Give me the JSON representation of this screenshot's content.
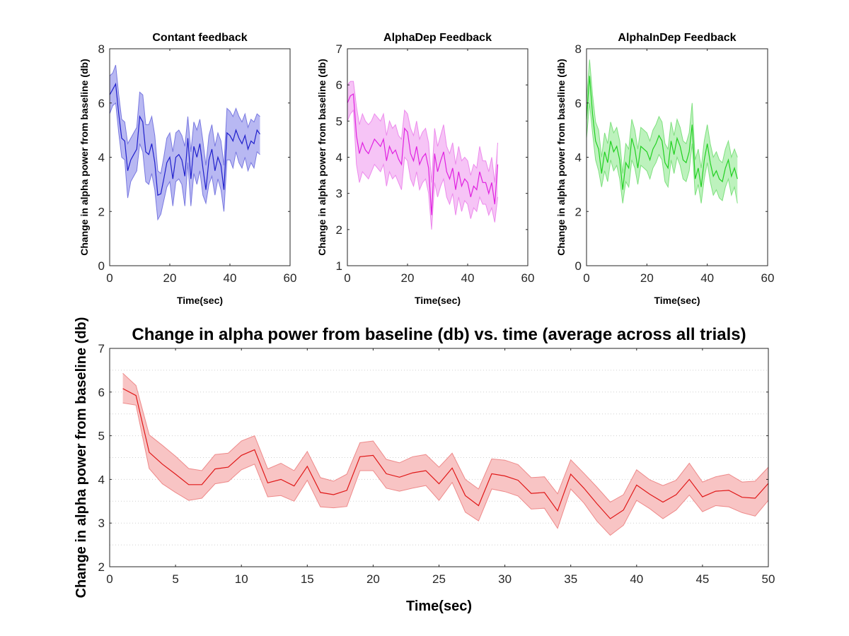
{
  "chart_data": [
    {
      "type": "line",
      "title": "Contant feedback",
      "xlabel": "Time(sec)",
      "ylabel": "Change in alpha power from baseline (db)",
      "xlim": [
        0,
        60
      ],
      "ylim": [
        0,
        8
      ],
      "xticks": [
        "0",
        "20",
        "40",
        "60"
      ],
      "yticks": [
        "0",
        "2",
        "4",
        "6",
        "8"
      ],
      "colors": {
        "line": "#1f1fcc",
        "band": "#b8b8f2",
        "band_edge": "#7878e0"
      },
      "series": [
        {
          "x": [
            0,
            1,
            2,
            3,
            4,
            5,
            6,
            7,
            8,
            9,
            10,
            11,
            12,
            13,
            14,
            15,
            16,
            17,
            18,
            19,
            20,
            21,
            22,
            23,
            24,
            25,
            26,
            27,
            28,
            29,
            30,
            31,
            32,
            33,
            34,
            35,
            36,
            37,
            38,
            39,
            40,
            41,
            42,
            43,
            44,
            45,
            46,
            47,
            48,
            49,
            50
          ],
          "values": [
            6.3,
            6.5,
            6.7,
            5.6,
            4.7,
            4.6,
            3.5,
            3.9,
            4.1,
            4.3,
            5.5,
            5.3,
            4.2,
            4.1,
            4.5,
            3.8,
            2.6,
            2.65,
            3.2,
            3.8,
            4.0,
            3.2,
            4.0,
            4.1,
            3.9,
            3.3,
            4.7,
            3.2,
            4.4,
            4.0,
            4.5,
            3.6,
            2.8,
            3.9,
            4.3,
            3.5,
            4.0,
            3.7,
            2.8,
            4.9,
            4.8,
            4.6,
            5.0,
            4.7,
            4.5,
            4.8,
            4.3,
            4.6,
            4.5,
            5.0,
            4.85
          ],
          "lower": [
            5.6,
            5.9,
            6.0,
            4.9,
            4.0,
            3.9,
            2.5,
            3.1,
            3.3,
            3.5,
            4.5,
            4.2,
            3.1,
            3.0,
            3.4,
            2.8,
            1.7,
            1.9,
            2.4,
            2.9,
            3.1,
            2.2,
            3.1,
            3.2,
            3.0,
            2.2,
            3.8,
            2.2,
            3.4,
            3.0,
            3.5,
            2.6,
            2.3,
            3.0,
            3.3,
            2.6,
            3.2,
            2.8,
            2.0,
            3.9,
            3.9,
            3.6,
            4.2,
            3.8,
            3.6,
            4.0,
            3.5,
            3.8,
            3.6,
            4.2,
            4.1
          ],
          "upper": [
            7.0,
            7.1,
            7.4,
            6.3,
            5.4,
            5.3,
            4.5,
            4.7,
            4.9,
            5.1,
            6.4,
            6.3,
            5.2,
            5.2,
            5.5,
            4.8,
            3.5,
            3.4,
            4.0,
            4.7,
            4.9,
            4.2,
            4.9,
            5.0,
            4.8,
            4.4,
            5.5,
            4.2,
            5.3,
            5.0,
            5.4,
            4.6,
            3.7,
            4.8,
            5.2,
            4.4,
            4.9,
            4.6,
            3.7,
            5.8,
            5.7,
            5.5,
            5.8,
            5.5,
            5.3,
            5.6,
            5.1,
            5.4,
            5.3,
            5.6,
            5.5
          ]
        }
      ]
    },
    {
      "type": "line",
      "title": "AlphaDep Feedback",
      "xlabel": "Time(sec)",
      "ylabel": "Change in alpha power from baseline (db)",
      "xlim": [
        0,
        60
      ],
      "ylim": [
        1,
        7
      ],
      "xticks": [
        "0",
        "20",
        "40",
        "60"
      ],
      "yticks": [
        "1",
        "2",
        "3",
        "4",
        "5",
        "6",
        "7"
      ],
      "colors": {
        "line": "#e020e0",
        "band": "#f6c4f6",
        "band_edge": "#ec8aec"
      },
      "series": [
        {
          "x": [
            0,
            1,
            2,
            3,
            4,
            5,
            6,
            7,
            8,
            9,
            10,
            11,
            12,
            13,
            14,
            15,
            16,
            17,
            18,
            19,
            20,
            21,
            22,
            23,
            24,
            25,
            26,
            27,
            28,
            29,
            30,
            31,
            32,
            33,
            34,
            35,
            36,
            37,
            38,
            39,
            40,
            41,
            42,
            43,
            44,
            45,
            46,
            47,
            48,
            49,
            50
          ],
          "values": [
            5.5,
            5.7,
            5.75,
            4.6,
            4.1,
            4.4,
            4.2,
            4.1,
            4.3,
            4.5,
            4.4,
            4.3,
            4.5,
            3.9,
            4.3,
            4.1,
            4.2,
            3.95,
            3.8,
            4.8,
            4.7,
            4.1,
            3.9,
            4.3,
            3.8,
            4.0,
            4.1,
            3.7,
            2.4,
            4.1,
            3.6,
            3.9,
            4.15,
            3.6,
            3.4,
            3.7,
            3.1,
            3.6,
            3.2,
            3.4,
            3.3,
            2.9,
            3.2,
            3.1,
            3.6,
            3.3,
            3.3,
            3.0,
            3.3,
            2.7,
            3.8
          ],
          "lower": [
            5.0,
            5.2,
            5.3,
            3.8,
            3.3,
            3.6,
            3.5,
            3.4,
            3.6,
            3.8,
            3.7,
            3.6,
            3.8,
            3.2,
            3.6,
            3.4,
            3.5,
            3.3,
            3.1,
            4.0,
            3.9,
            3.4,
            3.2,
            3.6,
            3.1,
            3.3,
            3.4,
            3.0,
            2.0,
            3.3,
            2.9,
            3.2,
            3.4,
            2.9,
            2.7,
            3.0,
            2.4,
            2.9,
            2.5,
            2.8,
            2.7,
            2.3,
            2.6,
            2.5,
            2.9,
            2.7,
            2.7,
            2.4,
            2.6,
            2.2,
            2.9
          ],
          "upper": [
            6.0,
            6.1,
            6.1,
            5.4,
            4.9,
            5.2,
            5.0,
            4.9,
            5.0,
            5.2,
            5.1,
            5.0,
            5.2,
            4.6,
            5.0,
            4.8,
            4.9,
            4.6,
            4.5,
            5.3,
            5.2,
            4.8,
            4.6,
            5.0,
            4.5,
            4.7,
            4.8,
            4.4,
            3.3,
            4.8,
            4.3,
            4.6,
            4.9,
            4.3,
            4.1,
            4.4,
            3.8,
            4.3,
            3.9,
            4.0,
            3.9,
            3.5,
            3.8,
            3.7,
            4.3,
            3.9,
            3.9,
            3.6,
            4.0,
            3.3,
            4.4
          ]
        }
      ]
    },
    {
      "type": "line",
      "title": "AlphaInDep Feedback",
      "xlabel": "Time(sec)",
      "ylabel": "Change in alpha power from baseline (db)",
      "xlim": [
        0,
        60
      ],
      "ylim": [
        0,
        8
      ],
      "xticks": [
        "0",
        "20",
        "40",
        "60"
      ],
      "yticks": [
        "0",
        "2",
        "4",
        "6",
        "8"
      ],
      "colors": {
        "line": "#20d020",
        "band": "#bdf2bd",
        "band_edge": "#7ee07e"
      },
      "series": [
        {
          "x": [
            0,
            1,
            2,
            3,
            4,
            5,
            6,
            7,
            8,
            9,
            10,
            11,
            12,
            13,
            14,
            15,
            16,
            17,
            18,
            19,
            20,
            21,
            22,
            23,
            24,
            25,
            26,
            27,
            28,
            29,
            30,
            31,
            32,
            33,
            34,
            35,
            36,
            37,
            38,
            39,
            40,
            41,
            42,
            43,
            44,
            45,
            46,
            47,
            48,
            49,
            50
          ],
          "values": [
            5.4,
            7.0,
            5.6,
            4.6,
            4.3,
            3.4,
            4.2,
            3.8,
            4.6,
            4.2,
            4.4,
            3.9,
            2.8,
            3.8,
            3.6,
            4.7,
            4.3,
            3.6,
            4.4,
            4.3,
            4.2,
            3.9,
            4.3,
            4.5,
            4.8,
            4.6,
            3.8,
            3.6,
            4.6,
            4.1,
            4.7,
            4.4,
            3.9,
            3.8,
            4.2,
            5.2,
            3.2,
            3.6,
            2.9,
            3.9,
            4.5,
            3.8,
            3.3,
            3.5,
            3.2,
            3.1,
            3.6,
            3.9,
            3.3,
            3.6,
            3.2
          ],
          "lower": [
            4.7,
            6.0,
            4.9,
            3.9,
            3.5,
            2.9,
            3.5,
            3.1,
            3.9,
            3.5,
            3.7,
            3.2,
            2.3,
            3.1,
            2.9,
            3.9,
            3.6,
            3.0,
            3.7,
            3.6,
            3.5,
            3.2,
            3.6,
            3.8,
            4.1,
            3.9,
            3.1,
            2.9,
            3.9,
            3.4,
            4.0,
            3.7,
            3.2,
            3.1,
            3.5,
            4.5,
            2.6,
            3.0,
            2.3,
            3.2,
            3.8,
            3.1,
            2.6,
            2.8,
            2.5,
            2.4,
            2.9,
            3.2,
            2.6,
            2.9,
            2.3
          ],
          "upper": [
            6.1,
            7.6,
            6.3,
            5.3,
            5.0,
            4.0,
            4.9,
            4.5,
            5.3,
            4.9,
            5.1,
            4.6,
            3.4,
            4.5,
            4.3,
            5.4,
            5.0,
            4.3,
            5.1,
            5.0,
            4.9,
            4.6,
            5.0,
            5.2,
            5.5,
            5.3,
            4.5,
            4.3,
            5.3,
            4.8,
            5.4,
            5.1,
            4.6,
            4.5,
            4.9,
            6.0,
            3.9,
            4.3,
            3.6,
            4.6,
            5.2,
            4.5,
            4.0,
            4.2,
            3.9,
            3.8,
            4.3,
            4.6,
            4.0,
            4.3,
            4.0
          ]
        }
      ]
    },
    {
      "type": "line",
      "title": "Change in alpha power from baseline (db)  vs. time (average across all trials)",
      "xlabel": "Time(sec)",
      "ylabel": "Change in alpha power from baseline (db)",
      "xlim": [
        0,
        50
      ],
      "ylim": [
        2,
        7
      ],
      "grid": "horizontal dotted",
      "xticks": [
        "0",
        "5",
        "10",
        "15",
        "20",
        "25",
        "30",
        "35",
        "40",
        "45",
        "50"
      ],
      "yticks": [
        "2",
        "3",
        "4",
        "5",
        "6",
        "7"
      ],
      "colors": {
        "line": "#e01818",
        "band": "#f8c4c4",
        "band_edge": "#ee8a8a"
      },
      "series": [
        {
          "x": [
            1,
            2,
            3,
            4,
            5,
            6,
            7,
            8,
            9,
            10,
            11,
            12,
            13,
            14,
            15,
            16,
            17,
            18,
            19,
            20,
            21,
            22,
            23,
            24,
            25,
            26,
            27,
            28,
            29,
            30,
            31,
            32,
            33,
            34,
            35,
            36,
            37,
            38,
            39,
            40,
            41,
            42,
            43,
            44,
            45,
            46,
            47,
            48,
            49,
            50
          ],
          "values": [
            6.08,
            5.92,
            4.62,
            4.35,
            4.12,
            3.88,
            3.88,
            4.24,
            4.28,
            4.55,
            4.68,
            3.92,
            4.0,
            3.85,
            4.3,
            3.7,
            3.65,
            3.75,
            4.52,
            4.55,
            4.13,
            4.05,
            4.15,
            4.2,
            3.9,
            4.26,
            3.63,
            3.4,
            4.13,
            4.08,
            3.98,
            3.68,
            3.7,
            3.28,
            4.12,
            3.8,
            3.44,
            3.1,
            3.3,
            3.87,
            3.66,
            3.48,
            3.65,
            4.0,
            3.6,
            3.73,
            3.75,
            3.59,
            3.57,
            3.91
          ],
          "lower": [
            5.75,
            5.7,
            4.25,
            3.9,
            3.7,
            3.52,
            3.57,
            3.9,
            3.95,
            4.22,
            4.35,
            3.6,
            3.63,
            3.5,
            3.98,
            3.37,
            3.35,
            3.38,
            4.2,
            4.2,
            3.8,
            3.73,
            3.8,
            3.86,
            3.52,
            3.93,
            3.25,
            3.05,
            3.78,
            3.72,
            3.62,
            3.32,
            3.34,
            2.88,
            3.78,
            3.46,
            3.04,
            2.72,
            2.95,
            3.52,
            3.33,
            3.1,
            3.3,
            3.64,
            3.26,
            3.4,
            3.37,
            3.24,
            3.16,
            3.52
          ],
          "upper": [
            6.43,
            6.15,
            5.02,
            4.78,
            4.53,
            4.25,
            4.2,
            4.57,
            4.6,
            4.88,
            5.0,
            4.24,
            4.37,
            4.2,
            4.64,
            4.04,
            3.96,
            4.12,
            4.84,
            4.88,
            4.46,
            4.38,
            4.52,
            4.57,
            4.28,
            4.6,
            4.0,
            3.78,
            4.47,
            4.44,
            4.34,
            4.04,
            4.06,
            3.67,
            4.45,
            4.14,
            3.82,
            3.48,
            3.65,
            4.22,
            3.99,
            3.86,
            3.98,
            4.37,
            3.94,
            4.06,
            4.12,
            3.94,
            3.96,
            4.28
          ]
        }
      ]
    }
  ]
}
